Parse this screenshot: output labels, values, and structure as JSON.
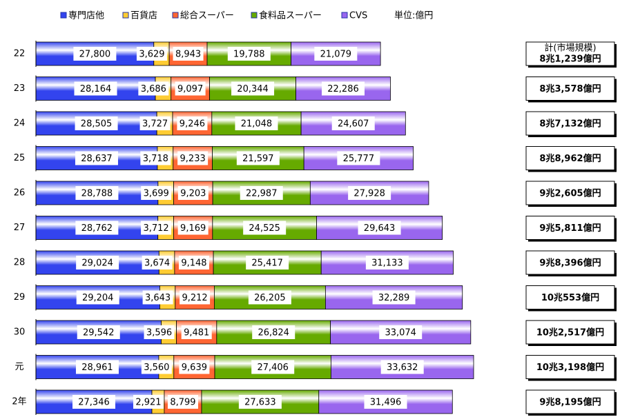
{
  "chart_data": {
    "type": "bar",
    "orientation": "horizontal",
    "stacked": true,
    "unit_label": "単位:億円",
    "categories": [
      "22",
      "23",
      "24",
      "25",
      "26",
      "27",
      "28",
      "29",
      "30",
      "元",
      "2年"
    ],
    "series": [
      {
        "name": "専門店他",
        "color": "#3344ee",
        "values": [
          27800,
          28164,
          28505,
          28637,
          28788,
          28762,
          29024,
          29204,
          29542,
          28961,
          27346
        ],
        "value_labels": [
          "27,800",
          "28,164",
          "28,505",
          "28,637",
          "28,788",
          "28,762",
          "29,024",
          "29,204",
          "29,542",
          "28,961",
          "27,346"
        ]
      },
      {
        "name": "百貨店",
        "color": "#ffcc33",
        "values": [
          3629,
          3686,
          3727,
          3718,
          3699,
          3712,
          3674,
          3643,
          3596,
          3560,
          2921
        ],
        "value_labels": [
          "3,629",
          "3,686",
          "3,727",
          "3,718",
          "3,699",
          "3,712",
          "3,674",
          "3,643",
          "3,596",
          "3,560",
          "2,921"
        ]
      },
      {
        "name": "総合スーパー",
        "color": "#ff6633",
        "values": [
          8943,
          9097,
          9246,
          9233,
          9203,
          9169,
          9148,
          9212,
          9481,
          9639,
          8799
        ],
        "value_labels": [
          "8,943",
          "9,097",
          "9,246",
          "9,233",
          "9,203",
          "9,169",
          "9,148",
          "9,212",
          "9,481",
          "9,639",
          "8,799"
        ]
      },
      {
        "name": "食料品スーパー",
        "color": "#66aa00",
        "values": [
          19788,
          20344,
          21048,
          21597,
          22987,
          24525,
          25417,
          26205,
          26824,
          27406,
          27633
        ],
        "value_labels": [
          "19,788",
          "20,344",
          "21,048",
          "21,597",
          "22,987",
          "24,525",
          "25,417",
          "26,205",
          "26,824",
          "27,406",
          "27,633"
        ]
      },
      {
        "name": "CVS",
        "color": "#9966ee",
        "values": [
          21079,
          22286,
          24607,
          25777,
          27928,
          29643,
          31133,
          32289,
          33074,
          33632,
          31496
        ],
        "value_labels": [
          "21,079",
          "22,286",
          "24,607",
          "25,777",
          "27,928",
          "29,643",
          "31,133",
          "32,289",
          "33,074",
          "33,632",
          "31,496"
        ]
      }
    ],
    "total_title": "計(市場規模)",
    "totals": [
      "8兆1,239億円",
      "8兆3,578億円",
      "8兆7,132億円",
      "8兆8,962億円",
      "9兆2,605億円",
      "9兆5,811億円",
      "9兆8,396億円",
      "10兆553億円",
      "10兆2,517億円",
      "10兆3,198億円",
      "9兆8,195億円"
    ],
    "legend": "top"
  }
}
